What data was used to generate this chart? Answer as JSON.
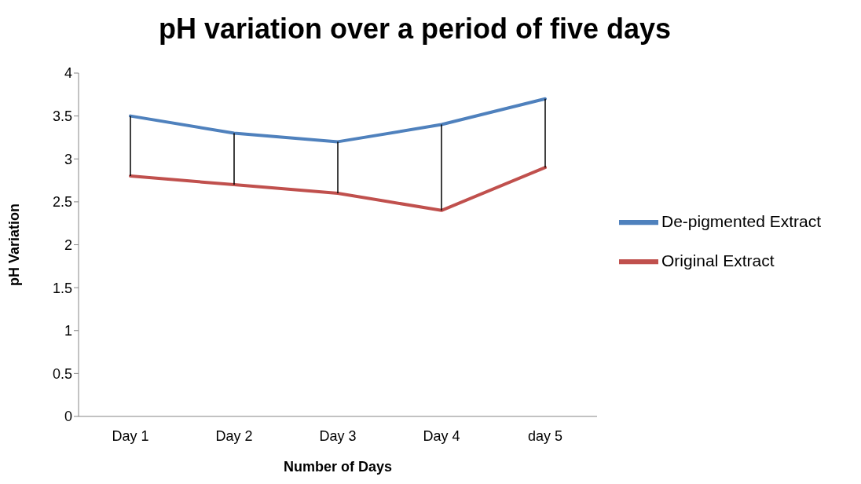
{
  "chart_data": {
    "type": "line",
    "title": "pH variation over a period of five days",
    "xlabel": "Number of Days",
    "ylabel": "pH Variation",
    "categories": [
      "Day 1",
      "Day 2",
      "Day 3",
      "Day 4",
      "day 5"
    ],
    "series": [
      {
        "name": "De-pigmented Extract",
        "color": "#4f81bd",
        "values": [
          3.5,
          3.3,
          3.2,
          3.4,
          3.7
        ]
      },
      {
        "name": "Original Extract",
        "color": "#c0504d",
        "values": [
          2.8,
          2.7,
          2.6,
          2.4,
          2.9
        ]
      }
    ],
    "ylim": [
      0,
      4
    ],
    "yticks": [
      0,
      0.5,
      1,
      1.5,
      2,
      2.5,
      3,
      3.5,
      4
    ],
    "grid": false,
    "legend": "right"
  }
}
